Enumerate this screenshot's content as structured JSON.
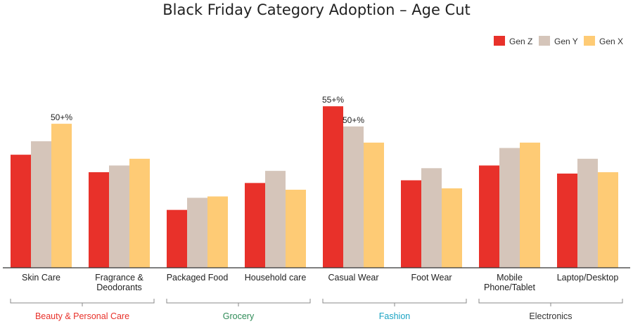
{
  "chart_data": {
    "type": "bar",
    "title": "Black Friday Category Adoption – Age Cut",
    "xlabel": "",
    "ylabel": "",
    "ylim": [
      0,
      60
    ],
    "grid": false,
    "legend_position": "top-right",
    "categories": [
      [
        "Skin Care"
      ],
      [
        "Fragrance &",
        "Deodorants"
      ],
      [
        "Packaged Food"
      ],
      [
        "Household care"
      ],
      [
        "Casual Wear"
      ],
      [
        "Foot Wear"
      ],
      [
        "Mobile",
        "Phone/Tablet"
      ],
      [
        "Laptop/Desktop"
      ]
    ],
    "series": [
      {
        "name": "Gen Z",
        "color": "#e8312a",
        "values": [
          42,
          35.5,
          21.5,
          31.5,
          60,
          32.5,
          38,
          35
        ]
      },
      {
        "name": "Gen Y",
        "color": "#d5c5ba",
        "values": [
          47,
          38,
          26,
          36,
          52.5,
          37,
          44.5,
          40.5
        ]
      },
      {
        "name": "Gen X",
        "color": "#fecb75",
        "values": [
          53.5,
          40.5,
          26.5,
          29,
          46.5,
          29.5,
          46.5,
          35.5
        ]
      }
    ],
    "annotations": [
      {
        "text": "50+%",
        "category": 0,
        "series": 2
      },
      {
        "text": "55+%",
        "category": 4,
        "series": 0
      },
      {
        "text": "50+%",
        "category": 4,
        "series": 1
      }
    ],
    "groups": [
      {
        "label": "Beauty & Personal Care",
        "color": "#e8312a",
        "from": 0,
        "to": 1
      },
      {
        "label": "Grocery",
        "color": "#2e8b57",
        "from": 2,
        "to": 3
      },
      {
        "label": "Fashion",
        "color": "#1aa3c3",
        "from": 4,
        "to": 5
      },
      {
        "label": "Electronics",
        "color": "#333333",
        "from": 6,
        "to": 7
      }
    ]
  }
}
